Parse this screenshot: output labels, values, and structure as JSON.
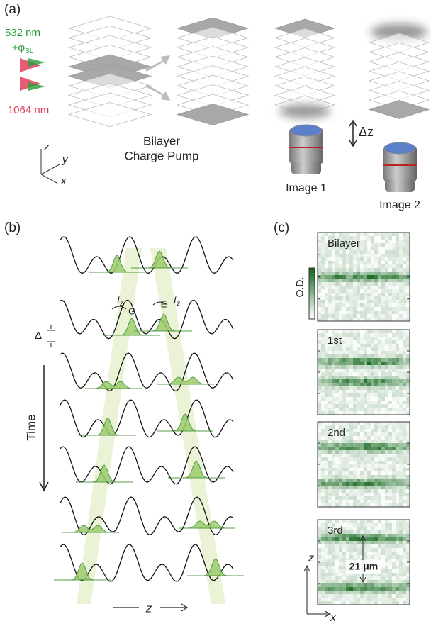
{
  "panel_a": {
    "label": "(a)",
    "laser_green": "532 nm",
    "phase": {
      "symbol": "+φ",
      "subscript": "SL"
    },
    "laser_red": "1064 nm",
    "step_label": [
      "Bilayer",
      "Charge Pump"
    ],
    "axes": {
      "z": "z",
      "y": "y",
      "x": "x"
    },
    "image_1": "Image 1",
    "image_2": "Image 2",
    "shift": "Δz"
  },
  "panel_b": {
    "label": "(b)",
    "tunneling": [
      {
        "t": "t",
        "sub": "z"
      },
      {
        "t": "t",
        "sub": "z"
      }
    ],
    "state_g": "G",
    "state_e": "E",
    "offset": "Δ",
    "time": "Time",
    "axis": "z"
  },
  "panel_c": {
    "label": "(c)",
    "colorbar": "O.D.",
    "images": [
      "Bilayer",
      "1st",
      "2nd",
      "3rd"
    ],
    "separation": "21 μm",
    "axes": {
      "z": "z",
      "x": "x"
    }
  }
}
